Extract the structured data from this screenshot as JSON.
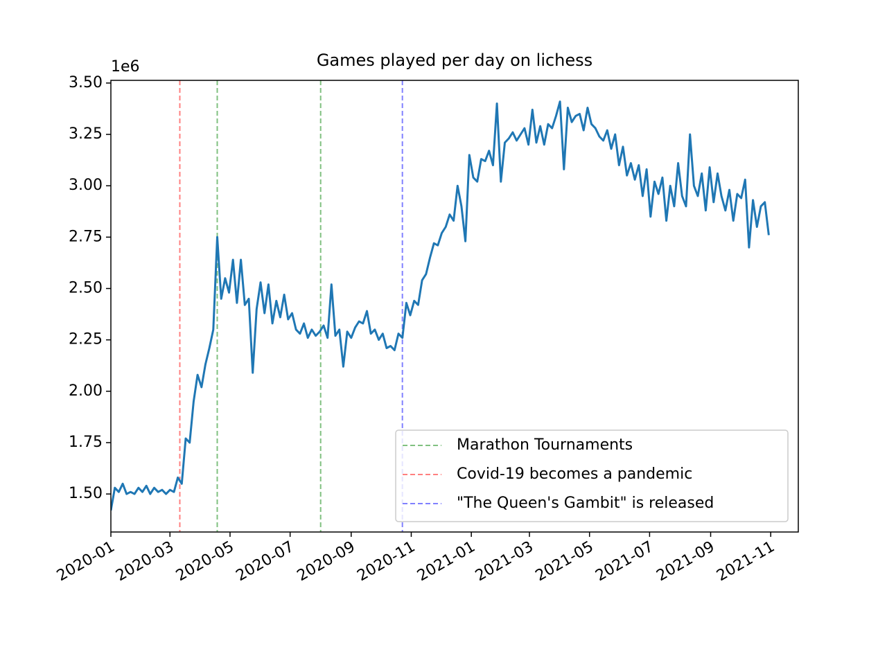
{
  "chart_data": {
    "type": "line",
    "title": "Games played per day on lichess",
    "y_offset_label": "1e6",
    "x": [
      0,
      4,
      8,
      12,
      16,
      20,
      24,
      28,
      32,
      36,
      40,
      44,
      48,
      52,
      56,
      60,
      64,
      68,
      72,
      76,
      80,
      84,
      88,
      92,
      96,
      100,
      104,
      108,
      112,
      116,
      120,
      124,
      128,
      132,
      136,
      140,
      144,
      148,
      152,
      156,
      160,
      164,
      168,
      172,
      176,
      180,
      184,
      188,
      192,
      196,
      200,
      204,
      208,
      212,
      216,
      220,
      224,
      228,
      232,
      236,
      240,
      244,
      248,
      252,
      256,
      260,
      264,
      268,
      272,
      276,
      280,
      284,
      288,
      292,
      296,
      300,
      304,
      308,
      312,
      316,
      320,
      324,
      328,
      332,
      336,
      340,
      344,
      348,
      352,
      356,
      360,
      364,
      368,
      372,
      376,
      380,
      384,
      388,
      392,
      396,
      400,
      404,
      408,
      412,
      416,
      420,
      424,
      428,
      432,
      436,
      440,
      444,
      448,
      452,
      456,
      460,
      464,
      468,
      472,
      476,
      480,
      484,
      488,
      492,
      496,
      500,
      504,
      508,
      512,
      516,
      520,
      524,
      528,
      532,
      536,
      540,
      544,
      548,
      552,
      556,
      560,
      564,
      568,
      572,
      576,
      580,
      584,
      588,
      592,
      596,
      600,
      604,
      608,
      612,
      616,
      620,
      624,
      628,
      632,
      636,
      640,
      644,
      648,
      652,
      656,
      660,
      664,
      668
    ],
    "series": [
      {
        "color": "#1f77b4",
        "values": [
          1.42,
          1.53,
          1.51,
          1.55,
          1.5,
          1.51,
          1.5,
          1.53,
          1.51,
          1.54,
          1.5,
          1.53,
          1.51,
          1.52,
          1.5,
          1.52,
          1.51,
          1.58,
          1.55,
          1.77,
          1.75,
          1.95,
          2.08,
          2.02,
          2.13,
          2.21,
          2.3,
          2.75,
          2.45,
          2.55,
          2.48,
          2.64,
          2.43,
          2.64,
          2.42,
          2.45,
          2.09,
          2.4,
          2.53,
          2.38,
          2.52,
          2.33,
          2.44,
          2.36,
          2.47,
          2.35,
          2.38,
          2.3,
          2.28,
          2.33,
          2.26,
          2.3,
          2.27,
          2.29,
          2.32,
          2.26,
          2.52,
          2.27,
          2.3,
          2.12,
          2.29,
          2.26,
          2.31,
          2.34,
          2.33,
          2.39,
          2.28,
          2.3,
          2.25,
          2.28,
          2.21,
          2.22,
          2.2,
          2.28,
          2.26,
          2.43,
          2.37,
          2.44,
          2.42,
          2.54,
          2.57,
          2.65,
          2.72,
          2.71,
          2.77,
          2.8,
          2.86,
          2.83,
          3.0,
          2.9,
          2.73,
          3.15,
          3.04,
          3.02,
          3.13,
          3.12,
          3.17,
          3.1,
          3.4,
          3.02,
          3.21,
          3.23,
          3.26,
          3.22,
          3.25,
          3.28,
          3.2,
          3.37,
          3.21,
          3.29,
          3.2,
          3.3,
          3.28,
          3.34,
          3.41,
          3.08,
          3.38,
          3.31,
          3.34,
          3.35,
          3.27,
          3.38,
          3.3,
          3.28,
          3.24,
          3.22,
          3.27,
          3.18,
          3.25,
          3.1,
          3.19,
          3.05,
          3.11,
          3.03,
          3.1,
          2.95,
          3.08,
          2.85,
          3.02,
          2.96,
          3.04,
          2.83,
          3.0,
          2.9,
          3.11,
          2.95,
          2.9,
          3.25,
          3.0,
          2.95,
          3.06,
          2.88,
          3.09,
          2.92,
          3.06,
          2.95,
          2.88,
          2.98,
          2.83,
          2.96,
          2.94,
          3.03,
          2.7,
          2.93,
          2.8,
          2.9,
          2.92,
          2.76
        ]
      }
    ],
    "vlines": [
      {
        "name": "Marathon Tournaments",
        "color": "#80c080",
        "x": [
          108,
          213
        ]
      },
      {
        "name": "Covid-19 becomes a pandemic",
        "color": "#ff8080",
        "x": [
          70
        ]
      },
      {
        "name": "\"The Queen's Gambit\" is released",
        "color": "#8080ff",
        "x": [
          296
        ]
      }
    ],
    "xlim": [
      0,
      698
    ],
    "xticks": [
      {
        "value": 0,
        "label": "2020-01"
      },
      {
        "value": 60,
        "label": "2020-03"
      },
      {
        "value": 121,
        "label": "2020-05"
      },
      {
        "value": 182,
        "label": "2020-07"
      },
      {
        "value": 244,
        "label": "2020-09"
      },
      {
        "value": 305,
        "label": "2020-11"
      },
      {
        "value": 366,
        "label": "2021-01"
      },
      {
        "value": 425,
        "label": "2021-03"
      },
      {
        "value": 486,
        "label": "2021-05"
      },
      {
        "value": 547,
        "label": "2021-07"
      },
      {
        "value": 609,
        "label": "2021-09"
      },
      {
        "value": 670,
        "label": "2021-11"
      }
    ],
    "ylim": [
      1.315,
      3.513
    ],
    "yticks": [
      {
        "value": 1.5,
        "label": "1.50"
      },
      {
        "value": 1.75,
        "label": "1.75"
      },
      {
        "value": 2,
        "label": "2.00"
      },
      {
        "value": 2.25,
        "label": "2.25"
      },
      {
        "value": 2.5,
        "label": "2.50"
      },
      {
        "value": 2.75,
        "label": "2.75"
      },
      {
        "value": 3,
        "label": "3.00"
      },
      {
        "value": 3.25,
        "label": "3.25"
      },
      {
        "value": 3.5,
        "label": "3.50"
      }
    ],
    "legend": "lower right"
  }
}
